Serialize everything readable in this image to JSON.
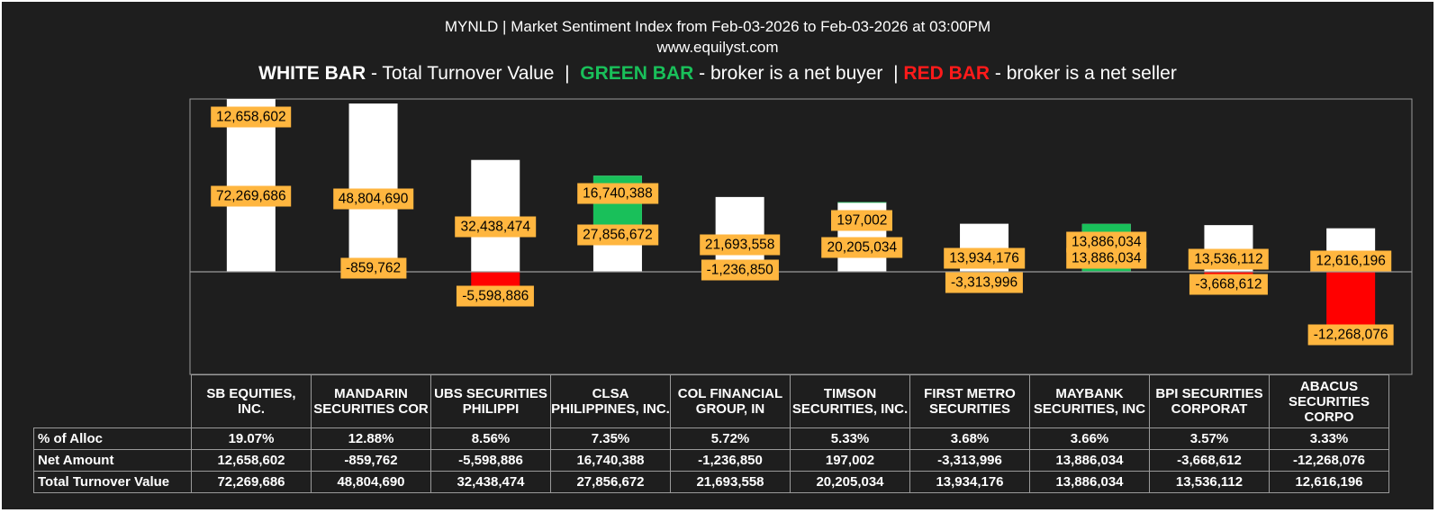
{
  "title": "MYNLD | Market Sentiment Index from Feb-03-2026 to Feb-03-2026 at 03:00PM",
  "subtitle": "www.equilyst.com",
  "legend": {
    "white_key": "WHITE BAR",
    "white_text": "- Total Turnover Value",
    "sep1": "|",
    "green_key": "GREEN BAR",
    "green_text": "-  broker is a net buyer",
    "sep2": "|",
    "red_key": "RED BAR",
    "red_text": "- broker is a net seller"
  },
  "colors": {
    "background": "#1e1e1e",
    "turnover": "#ffffff",
    "net_buyer": "#19c05a",
    "net_seller": "#ff0000",
    "label_box": "#ffb63f"
  },
  "chart_data": {
    "type": "bar",
    "categories": [
      "SB EQUITIES, INC.",
      "MANDARIN SECURITIES COR",
      "UBS SECURITIES PHILIPPI",
      "CLSA PHILIPPINES, INC.",
      "COL FINANCIAL GROUP, IN",
      "TIMSON SECURITIES, INC.",
      "FIRST METRO SECURITIES",
      "MAYBANK SECURITIES, INC",
      "BPI SECURITIES CORPORAT",
      "ABACUS SECURITIES CORPO"
    ],
    "series": [
      {
        "name": "Total Turnover Value",
        "values": [
          72269686,
          48804690,
          32438474,
          27856672,
          21693558,
          20205034,
          13934176,
          13886034,
          13536112,
          12616196
        ]
      },
      {
        "name": "Net Amount",
        "values": [
          12658602,
          -859762,
          -5598886,
          16740388,
          -1236850,
          197002,
          -3313996,
          13886034,
          -3668612,
          -12268076
        ]
      }
    ],
    "legend": "top"
  },
  "table": {
    "rows": [
      {
        "label": "% of Alloc",
        "values": [
          "19.07%",
          "12.88%",
          "8.56%",
          "7.35%",
          "5.72%",
          "5.33%",
          "3.68%",
          "3.66%",
          "3.57%",
          "3.33%"
        ]
      },
      {
        "label": "Net Amount",
        "values": [
          "12,658,602",
          "-859,762",
          "-5,598,886",
          "16,740,388",
          "-1,236,850",
          "197,002",
          "-3,313,996",
          "13,886,034",
          "-3,668,612",
          "-12,268,076"
        ]
      },
      {
        "label": "Total Turnover Value",
        "values": [
          "72,269,686",
          "48,804,690",
          "32,438,474",
          "27,856,672",
          "21,693,558",
          "20,205,034",
          "13,934,176",
          "13,886,034",
          "13,536,112",
          "12,616,196"
        ]
      }
    ]
  }
}
